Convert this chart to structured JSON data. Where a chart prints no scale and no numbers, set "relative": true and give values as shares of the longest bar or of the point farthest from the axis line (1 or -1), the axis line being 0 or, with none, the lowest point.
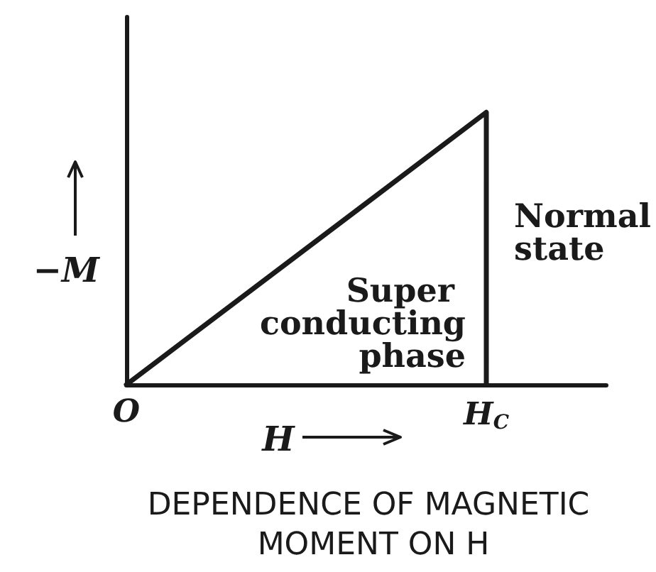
{
  "chart_data": {
    "type": "line",
    "title": "DEPENDENCE OF MAGNETIC MOMENT ON H",
    "xlabel": "H",
    "ylabel": "−M",
    "relative": true,
    "categories": [
      "O",
      null,
      null,
      "H$_{C}$",
      null
    ],
    "series": [
      {
        "x": [
          "O",
          "H$_{C}$",
          "H$_{C}$"
        ],
        "values": [
          0,
          1,
          0
        ],
        "color": "#1a1a1a"
      }
    ],
    "marker": "none",
    "annotations": [
      "Normal state",
      "Super conducting phase"
    ]
  }
}
